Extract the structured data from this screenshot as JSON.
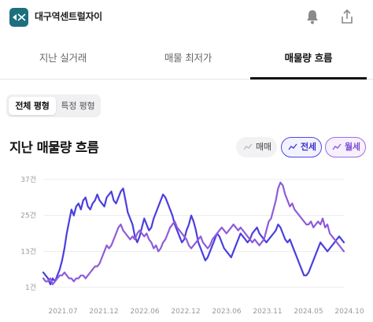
{
  "header": {
    "apartment_name": "대구역센트럴자이",
    "logo_icon": "apartment-logo-icon",
    "bell_icon": "bell-icon",
    "share_icon": "share-icon"
  },
  "tabs": [
    {
      "label": "지난 실거래",
      "active": false
    },
    {
      "label": "매물 최저가",
      "active": false
    },
    {
      "label": "매물량 흐름",
      "active": true
    }
  ],
  "segmented": {
    "options": [
      "전체 평형",
      "특정 평형"
    ],
    "selected": "전체 평형"
  },
  "section": {
    "title": "지난 매물량 흐름"
  },
  "legend": [
    {
      "label": "매매",
      "active": false,
      "color": "#bdbdbd"
    },
    {
      "label": "전세",
      "active": true,
      "color": "#4a3fe0"
    },
    {
      "label": "월세",
      "active": true,
      "color": "#8e5cd9"
    }
  ],
  "chart_data": {
    "type": "line",
    "yticks": [
      "37건",
      "25건",
      "13건",
      "1건"
    ],
    "ytick_values": [
      37,
      25,
      13,
      1
    ],
    "ylim": [
      1,
      37
    ],
    "xticks": [
      "2021.07",
      "2021.12",
      "2022.06",
      "2022.12",
      "2023.06",
      "2023.11",
      "2024.05",
      "2024.10"
    ],
    "grid": true,
    "series": [
      {
        "name": "전세",
        "color": "#4a3fe0",
        "values": [
          6,
          5,
          4,
          2,
          4,
          3,
          5,
          7,
          10,
          14,
          19,
          23,
          27,
          25,
          28,
          29,
          27,
          30,
          31,
          28,
          27,
          29,
          30,
          32,
          30,
          29,
          28,
          31,
          32,
          33,
          30,
          29,
          31,
          33,
          34,
          30,
          26,
          24,
          22,
          18,
          16,
          18,
          21,
          24,
          22,
          20,
          21,
          24,
          26,
          28,
          30,
          32,
          31,
          29,
          27,
          25,
          22,
          20,
          18,
          16,
          17,
          20,
          22,
          25,
          23,
          20,
          16,
          14,
          12,
          10,
          11,
          13,
          15,
          17,
          19,
          18,
          16,
          14,
          13,
          12,
          11,
          13,
          15,
          17,
          19,
          18,
          17,
          16,
          17,
          19,
          20,
          21,
          19,
          18,
          17,
          16,
          17,
          18,
          19,
          20,
          22,
          21,
          19,
          17,
          16,
          17,
          15,
          13,
          11,
          9,
          7,
          5,
          5,
          6,
          8,
          10,
          12,
          14,
          16,
          15,
          14,
          13,
          14,
          15,
          16,
          17,
          18,
          17,
          16
        ]
      },
      {
        "name": "월세",
        "color": "#8e5cd9",
        "values": [
          4,
          3,
          3,
          4,
          2,
          3,
          4,
          5,
          5,
          6,
          5,
          4,
          4,
          3,
          4,
          4,
          5,
          5,
          4,
          5,
          6,
          7,
          8,
          8,
          9,
          11,
          13,
          15,
          14,
          15,
          17,
          19,
          21,
          22,
          20,
          19,
          18,
          17,
          18,
          17,
          19,
          20,
          19,
          18,
          19,
          17,
          16,
          14,
          15,
          13,
          14,
          16,
          17,
          19,
          21,
          22,
          23,
          21,
          20,
          19,
          18,
          17,
          15,
          14,
          15,
          16,
          17,
          18,
          16,
          15,
          14,
          15,
          17,
          18,
          19,
          20,
          21,
          20,
          19,
          20,
          21,
          22,
          21,
          20,
          21,
          20,
          19,
          18,
          17,
          16,
          17,
          16,
          15,
          16,
          17,
          20,
          23,
          24,
          27,
          30,
          34,
          36,
          35,
          32,
          30,
          28,
          29,
          27,
          26,
          25,
          24,
          23,
          22,
          22,
          23,
          21,
          22,
          23,
          22,
          24,
          21,
          22,
          19,
          18,
          17,
          16,
          15,
          14,
          13
        ]
      }
    ]
  }
}
